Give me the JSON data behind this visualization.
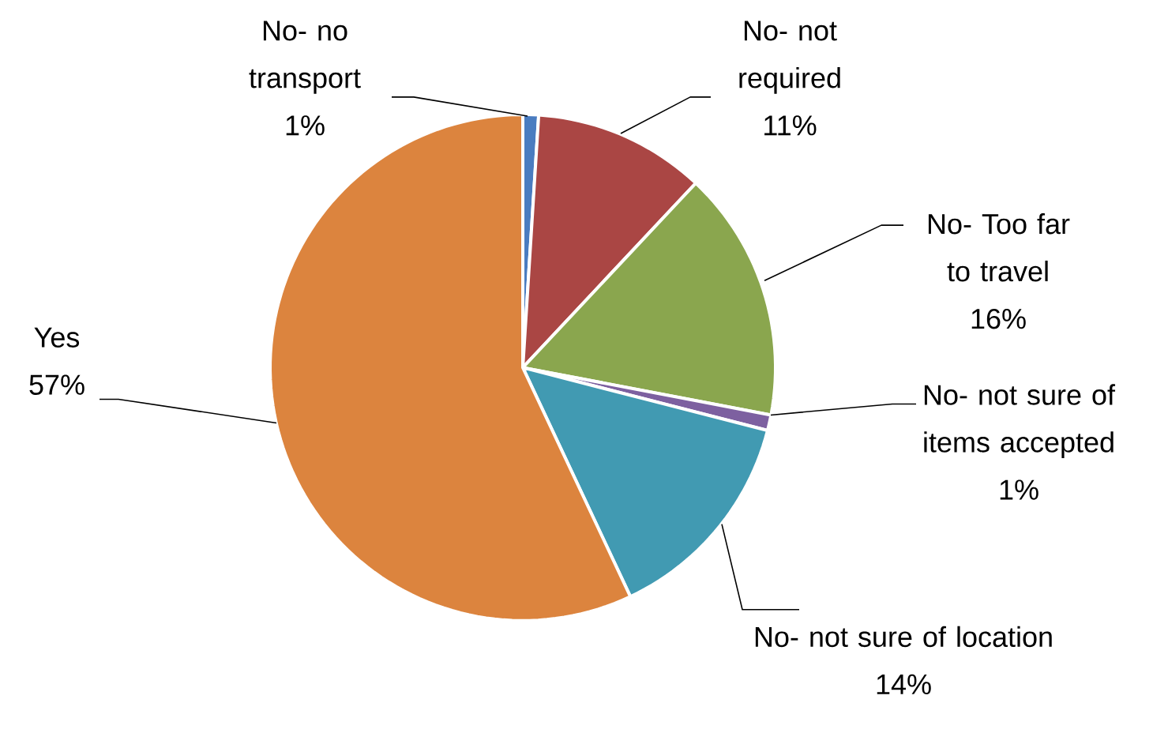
{
  "chart_data": {
    "type": "pie",
    "categories": [
      "No- no transport",
      "No- not required",
      "No- Too far to travel",
      "No- not sure of items accepted",
      "No- not sure of location",
      "Yes"
    ],
    "values": [
      1,
      11,
      16,
      1,
      14,
      57
    ],
    "value_labels": [
      "1%",
      "11%",
      "16%",
      "1%",
      "14%",
      "57%"
    ],
    "colors": [
      "#4a7cc0",
      "#aa4644",
      "#8aa64e",
      "#7d60a0",
      "#419ab2",
      "#dc843e"
    ]
  }
}
